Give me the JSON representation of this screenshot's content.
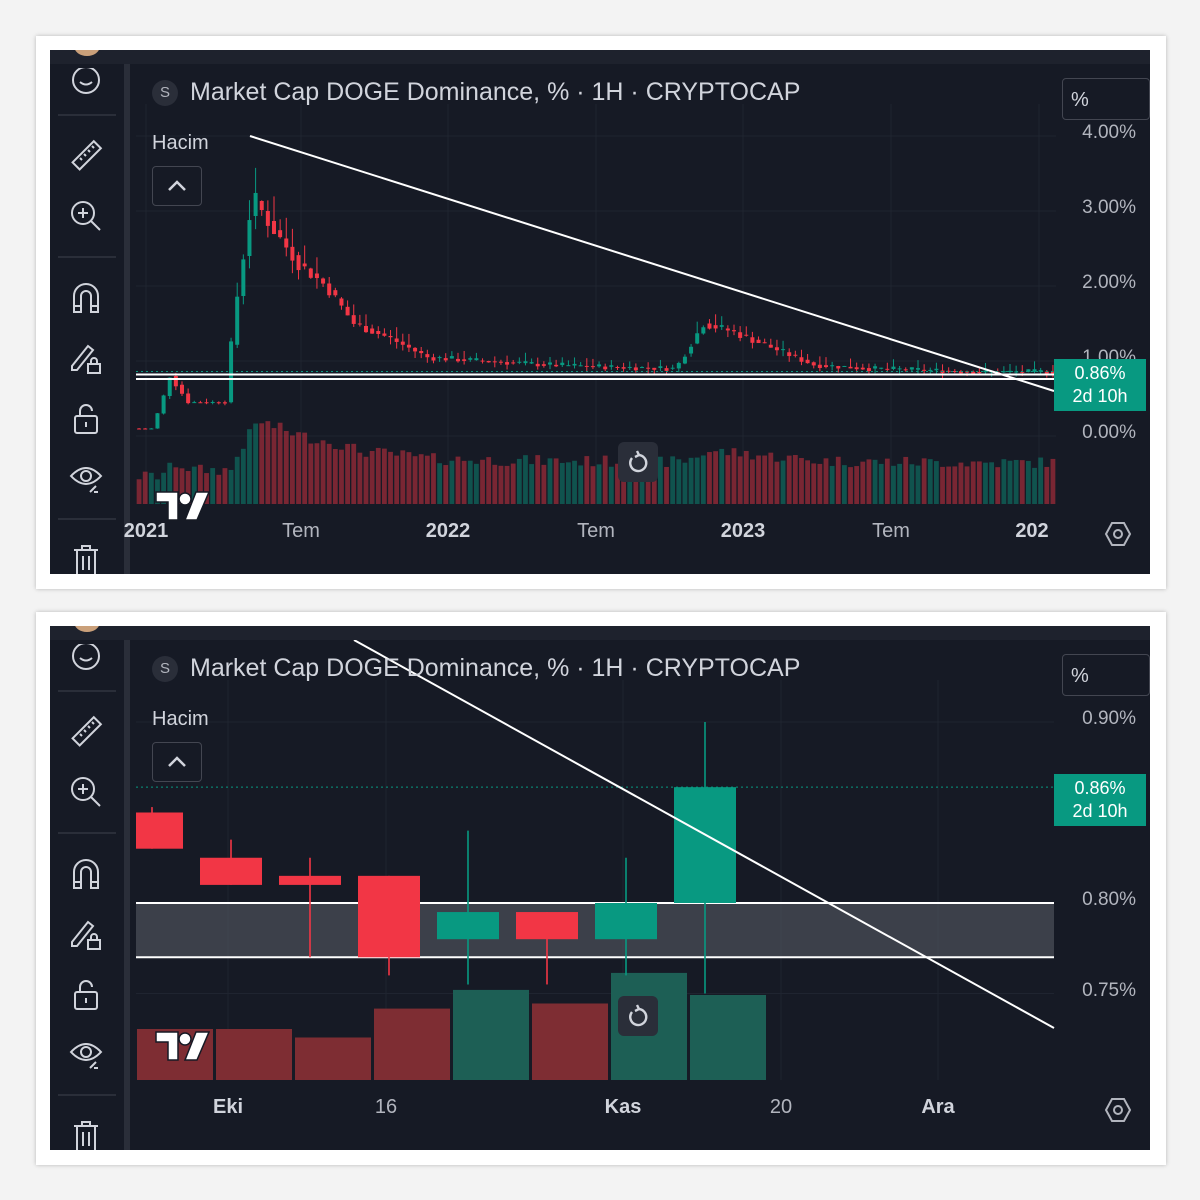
{
  "colors": {
    "up": "#089981",
    "down": "#f23645",
    "background": "#161a25",
    "text": "#d1d4dc"
  },
  "panels": [
    {
      "title": "Market Cap DOGE Dominance, % · 1H · CRYPTOCAP",
      "symbol_badge": "S",
      "volume_label": "Hacim",
      "scale_button": "%",
      "price_badge": {
        "value": "0.86%",
        "countdown": "2d 10h"
      },
      "y_axis": [
        "4.00%",
        "3.00%",
        "2.00%",
        "1.00%",
        "0.00%"
      ],
      "x_axis": [
        "2021",
        "Tem",
        "2022",
        "Tem",
        "2023",
        "Tem",
        "202"
      ]
    },
    {
      "title": "Market Cap DOGE Dominance, % · 1H · CRYPTOCAP",
      "symbol_badge": "S",
      "volume_label": "Hacim",
      "scale_button": "%",
      "price_badge": {
        "value": "0.86%",
        "countdown": "2d 10h"
      },
      "y_axis": [
        "0.90%",
        "0.80%",
        "0.75%"
      ],
      "x_axis": [
        "Eki",
        "16",
        "Kas",
        "20",
        "Ara"
      ]
    }
  ],
  "chart_data": [
    {
      "type": "candlestick",
      "title": "Market Cap DOGE Dominance, % · 1H · CRYPTOCAP",
      "ylim": [
        0,
        4
      ],
      "y_ticks": [
        0,
        1,
        2,
        3,
        4
      ],
      "x_ticks": [
        "2021",
        "Tem",
        "2022",
        "Tem",
        "2023",
        "Tem",
        "202"
      ],
      "current_value": 0.86,
      "approx_path": [
        {
          "t": 0.0,
          "v": 0.1
        },
        {
          "t": 0.02,
          "v": 0.1
        },
        {
          "t": 0.03,
          "v": 0.4
        },
        {
          "t": 0.04,
          "v": 0.8
        },
        {
          "t": 0.06,
          "v": 0.45
        },
        {
          "t": 0.1,
          "v": 0.45
        },
        {
          "t": 0.11,
          "v": 1.6
        },
        {
          "t": 0.13,
          "v": 3.2
        },
        {
          "t": 0.15,
          "v": 2.8
        },
        {
          "t": 0.18,
          "v": 2.3
        },
        {
          "t": 0.21,
          "v": 2.0
        },
        {
          "t": 0.24,
          "v": 1.5
        },
        {
          "t": 0.28,
          "v": 1.3
        },
        {
          "t": 0.32,
          "v": 1.05
        },
        {
          "t": 0.38,
          "v": 1.0
        },
        {
          "t": 0.45,
          "v": 0.95
        },
        {
          "t": 0.52,
          "v": 0.92
        },
        {
          "t": 0.59,
          "v": 0.9
        },
        {
          "t": 0.62,
          "v": 1.5
        },
        {
          "t": 0.65,
          "v": 1.4
        },
        {
          "t": 0.69,
          "v": 1.2
        },
        {
          "t": 0.74,
          "v": 0.95
        },
        {
          "t": 0.8,
          "v": 0.9
        },
        {
          "t": 0.86,
          "v": 0.88
        },
        {
          "t": 0.92,
          "v": 0.85
        },
        {
          "t": 1.0,
          "v": 0.86
        }
      ]
    },
    {
      "type": "candlestick",
      "title": "Market Cap DOGE Dominance, % · 1H · CRYPTOCAP",
      "ylim": [
        0.73,
        0.91
      ],
      "y_ticks": [
        0.75,
        0.8,
        0.9
      ],
      "x_ticks": [
        "Eki",
        "16",
        "Kas",
        "20",
        "Ara"
      ],
      "current_value": 0.86,
      "zone": [
        0.77,
        0.8
      ],
      "candles": [
        {
          "o": 0.85,
          "h": 0.853,
          "l": 0.83,
          "c": 0.83
        },
        {
          "o": 0.825,
          "h": 0.835,
          "l": 0.81,
          "c": 0.81
        },
        {
          "o": 0.815,
          "h": 0.825,
          "l": 0.77,
          "c": 0.81
        },
        {
          "o": 0.815,
          "h": 0.815,
          "l": 0.76,
          "c": 0.77
        },
        {
          "o": 0.78,
          "h": 0.84,
          "l": 0.755,
          "c": 0.795
        },
        {
          "o": 0.795,
          "h": 0.795,
          "l": 0.755,
          "c": 0.78
        },
        {
          "o": 0.78,
          "h": 0.825,
          "l": 0.76,
          "c": 0.8
        },
        {
          "o": 0.8,
          "h": 0.9,
          "l": 0.75,
          "c": 0.864
        }
      ],
      "volumes": [
        0.3,
        0.3,
        0.25,
        0.42,
        0.53,
        0.45,
        0.63,
        0.5
      ]
    }
  ]
}
